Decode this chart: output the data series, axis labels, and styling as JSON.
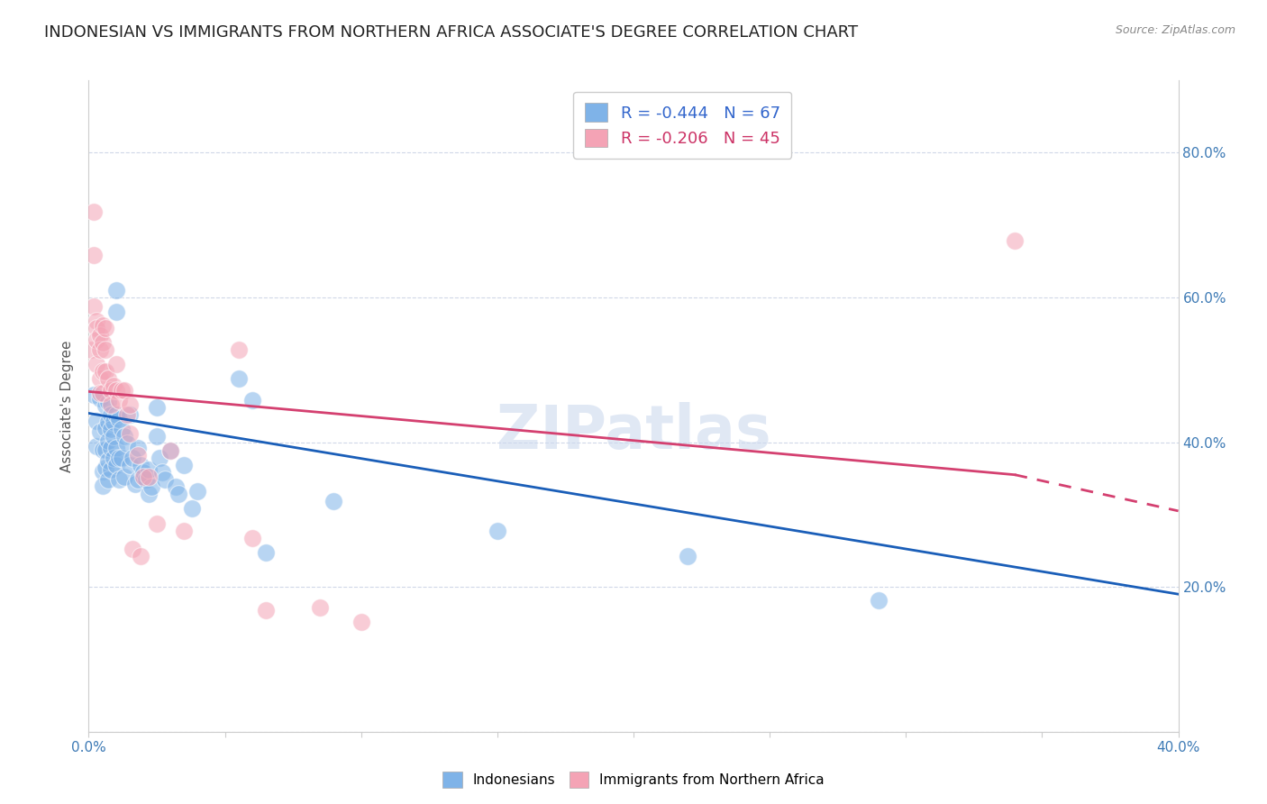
{
  "title": "INDONESIAN VS IMMIGRANTS FROM NORTHERN AFRICA ASSOCIATE'S DEGREE CORRELATION CHART",
  "source": "Source: ZipAtlas.com",
  "ylabel": "Associate's Degree",
  "xlim": [
    0.0,
    0.4
  ],
  "ylim": [
    0.0,
    0.9
  ],
  "xtick_positions": [
    0.0,
    0.05,
    0.1,
    0.15,
    0.2,
    0.25,
    0.3,
    0.35,
    0.4
  ],
  "xticklabels": [
    "0.0%",
    "",
    "",
    "",
    "",
    "",
    "",
    "",
    "40.0%"
  ],
  "right_ytick_positions": [
    0.0,
    0.2,
    0.4,
    0.6,
    0.8
  ],
  "right_yticklabels": [
    "",
    "20.0%",
    "40.0%",
    "60.0%",
    "80.0%"
  ],
  "legend_text_blue": "R = -0.444   N = 67",
  "legend_text_pink": "R = -0.206   N = 45",
  "legend_label_blue": "Indonesians",
  "legend_label_pink": "Immigrants from Northern Africa",
  "blue_color": "#7fb3e8",
  "pink_color": "#f4a3b5",
  "blue_line_color": "#1a5eb8",
  "pink_line_color": "#d44070",
  "blue_reg": [
    0.0,
    0.44,
    0.4,
    0.19
  ],
  "pink_reg_solid": [
    0.0,
    0.47,
    0.34,
    0.355
  ],
  "pink_reg_dash": [
    0.34,
    0.355,
    0.4,
    0.305
  ],
  "blue_scatter": [
    [
      0.002,
      0.465
    ],
    [
      0.003,
      0.43
    ],
    [
      0.003,
      0.395
    ],
    [
      0.004,
      0.46
    ],
    [
      0.004,
      0.415
    ],
    [
      0.005,
      0.39
    ],
    [
      0.005,
      0.36
    ],
    [
      0.005,
      0.34
    ],
    [
      0.006,
      0.45
    ],
    [
      0.006,
      0.42
    ],
    [
      0.006,
      0.39
    ],
    [
      0.006,
      0.365
    ],
    [
      0.007,
      0.455
    ],
    [
      0.007,
      0.428
    ],
    [
      0.007,
      0.402
    ],
    [
      0.007,
      0.374
    ],
    [
      0.007,
      0.348
    ],
    [
      0.008,
      0.438
    ],
    [
      0.008,
      0.418
    ],
    [
      0.008,
      0.392
    ],
    [
      0.008,
      0.362
    ],
    [
      0.009,
      0.428
    ],
    [
      0.009,
      0.408
    ],
    [
      0.009,
      0.378
    ],
    [
      0.01,
      0.61
    ],
    [
      0.01,
      0.58
    ],
    [
      0.01,
      0.438
    ],
    [
      0.01,
      0.392
    ],
    [
      0.01,
      0.368
    ],
    [
      0.011,
      0.432
    ],
    [
      0.011,
      0.378
    ],
    [
      0.011,
      0.348
    ],
    [
      0.012,
      0.418
    ],
    [
      0.012,
      0.378
    ],
    [
      0.013,
      0.408
    ],
    [
      0.013,
      0.352
    ],
    [
      0.014,
      0.398
    ],
    [
      0.015,
      0.438
    ],
    [
      0.015,
      0.368
    ],
    [
      0.016,
      0.378
    ],
    [
      0.017,
      0.342
    ],
    [
      0.018,
      0.392
    ],
    [
      0.018,
      0.348
    ],
    [
      0.019,
      0.368
    ],
    [
      0.02,
      0.358
    ],
    [
      0.021,
      0.348
    ],
    [
      0.022,
      0.362
    ],
    [
      0.022,
      0.328
    ],
    [
      0.023,
      0.338
    ],
    [
      0.025,
      0.448
    ],
    [
      0.025,
      0.408
    ],
    [
      0.026,
      0.378
    ],
    [
      0.027,
      0.358
    ],
    [
      0.028,
      0.348
    ],
    [
      0.03,
      0.388
    ],
    [
      0.032,
      0.338
    ],
    [
      0.033,
      0.328
    ],
    [
      0.035,
      0.368
    ],
    [
      0.038,
      0.308
    ],
    [
      0.04,
      0.332
    ],
    [
      0.055,
      0.488
    ],
    [
      0.06,
      0.458
    ],
    [
      0.065,
      0.248
    ],
    [
      0.09,
      0.318
    ],
    [
      0.15,
      0.278
    ],
    [
      0.22,
      0.242
    ],
    [
      0.29,
      0.182
    ]
  ],
  "pink_scatter": [
    [
      0.001,
      0.528
    ],
    [
      0.002,
      0.718
    ],
    [
      0.002,
      0.658
    ],
    [
      0.002,
      0.588
    ],
    [
      0.003,
      0.568
    ],
    [
      0.003,
      0.558
    ],
    [
      0.003,
      0.542
    ],
    [
      0.003,
      0.508
    ],
    [
      0.004,
      0.548
    ],
    [
      0.004,
      0.528
    ],
    [
      0.004,
      0.488
    ],
    [
      0.004,
      0.468
    ],
    [
      0.005,
      0.562
    ],
    [
      0.005,
      0.538
    ],
    [
      0.005,
      0.498
    ],
    [
      0.005,
      0.468
    ],
    [
      0.006,
      0.558
    ],
    [
      0.006,
      0.528
    ],
    [
      0.006,
      0.498
    ],
    [
      0.007,
      0.488
    ],
    [
      0.008,
      0.472
    ],
    [
      0.008,
      0.452
    ],
    [
      0.009,
      0.478
    ],
    [
      0.01,
      0.508
    ],
    [
      0.01,
      0.472
    ],
    [
      0.011,
      0.458
    ],
    [
      0.012,
      0.472
    ],
    [
      0.013,
      0.472
    ],
    [
      0.014,
      0.438
    ],
    [
      0.015,
      0.452
    ],
    [
      0.015,
      0.412
    ],
    [
      0.016,
      0.252
    ],
    [
      0.018,
      0.382
    ],
    [
      0.019,
      0.242
    ],
    [
      0.02,
      0.352
    ],
    [
      0.022,
      0.352
    ],
    [
      0.025,
      0.288
    ],
    [
      0.03,
      0.388
    ],
    [
      0.035,
      0.278
    ],
    [
      0.055,
      0.528
    ],
    [
      0.06,
      0.268
    ],
    [
      0.065,
      0.168
    ],
    [
      0.085,
      0.172
    ],
    [
      0.1,
      0.152
    ],
    [
      0.34,
      0.678
    ]
  ],
  "background_color": "#ffffff",
  "grid_color": "#d0d8e8",
  "watermark": "ZIPatlas",
  "title_fontsize": 13,
  "axis_label_fontsize": 11,
  "tick_fontsize": 11,
  "legend_fontsize": 13
}
